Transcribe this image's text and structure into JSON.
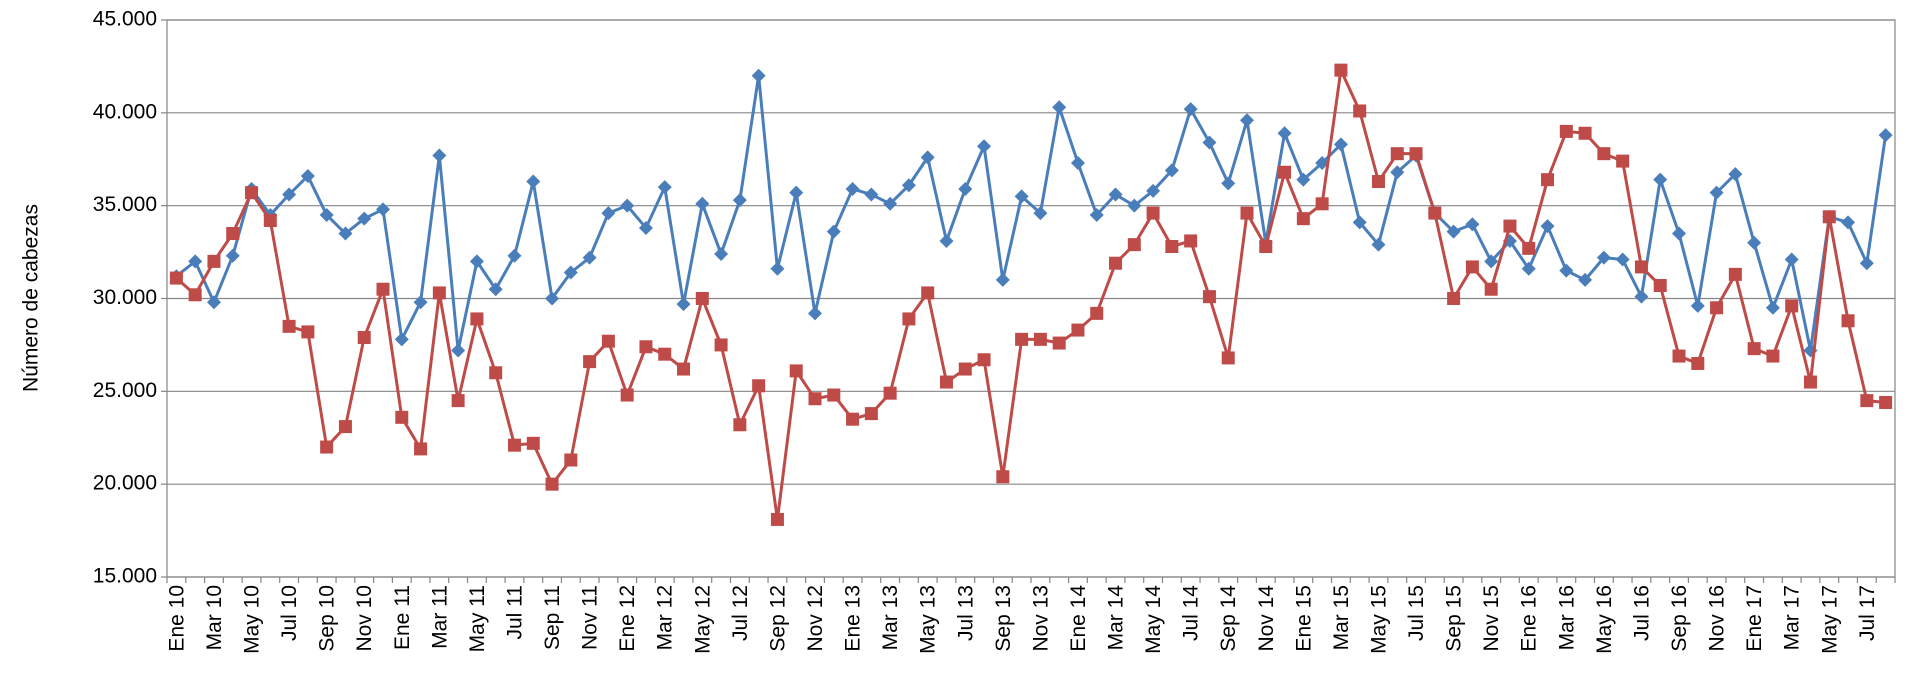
{
  "chart_data": {
    "type": "line",
    "y_label": "Número de cabezas",
    "categories": [
      "Ene 10",
      null,
      "Mar 10",
      null,
      "May 10",
      null,
      "Jul 10",
      null,
      "Sep 10",
      null,
      "Nov 10",
      null,
      "Ene 11",
      null,
      "Mar 11",
      null,
      "May 11",
      null,
      "Jul 11",
      null,
      "Sep 11",
      null,
      "Nov 11",
      null,
      "Ene 12",
      null,
      "Mar 12",
      null,
      "May 12",
      null,
      "Jul 12",
      null,
      "Sep 12",
      null,
      "Nov 12",
      null,
      "Ene 13",
      null,
      "Mar 13",
      null,
      "May 13",
      null,
      "Jul 13",
      null,
      "Sep 13",
      null,
      "Nov 13",
      null,
      "Ene 14",
      null,
      "Mar 14",
      null,
      "May 14",
      null,
      "Jul 14",
      null,
      "Sep 14",
      null,
      "Nov 14",
      null,
      "Ene 15",
      null,
      "Mar 15",
      null,
      "May 15",
      null,
      "Jul 15",
      null,
      "Sep 15",
      null,
      "Nov 15",
      null,
      "Ene 16",
      null,
      "Mar 16",
      null,
      "May 16",
      null,
      "Jul 16",
      null,
      "Sep 16",
      null,
      "Nov 16",
      null,
      "Ene 17",
      null,
      "Mar 17",
      null,
      "May 17",
      null,
      "Jul 17",
      null
    ],
    "series": [
      {
        "color": "#4a7ebb",
        "marker": "diamond",
        "values": [
          31200,
          32000,
          29800,
          32300,
          35900,
          34500,
          35600,
          36600,
          34500,
          33500,
          34300,
          34800,
          27800,
          29800,
          37700,
          27200,
          32000,
          30500,
          32300,
          36300,
          30000,
          31400,
          32200,
          34600,
          35000,
          33800,
          36000,
          29700,
          35100,
          32400,
          35300,
          42000,
          31600,
          35700,
          29200,
          33600,
          35900,
          35600,
          35100,
          36100,
          37600,
          33100,
          35900,
          38200,
          31000,
          35500,
          34600,
          40300,
          37300,
          34500,
          35600,
          35000,
          35800,
          36900,
          40200,
          38400,
          36200,
          39600,
          33000,
          38900,
          36400,
          37300,
          38300,
          34100,
          32900,
          36800,
          37700,
          34600,
          33600,
          34000,
          32000,
          33100,
          31600,
          33900,
          31500,
          31000,
          32200,
          32100,
          30100,
          36400,
          33500,
          29600,
          35700,
          36700,
          33000,
          29500,
          32100,
          27200,
          34400,
          34100,
          31900,
          38800
        ]
      },
      {
        "color": "#be4b48",
        "marker": "square",
        "values": [
          31100,
          30200,
          32000,
          33500,
          35700,
          34200,
          28500,
          28200,
          22000,
          23100,
          27900,
          30500,
          23600,
          21900,
          30300,
          24500,
          28900,
          26000,
          22100,
          22200,
          20000,
          21300,
          26600,
          27700,
          24800,
          27400,
          27000,
          26200,
          30000,
          27500,
          23200,
          25300,
          18100,
          26100,
          24600,
          24800,
          23500,
          23800,
          24900,
          28900,
          30300,
          25500,
          26200,
          26700,
          20400,
          27800,
          27800,
          27600,
          28300,
          29200,
          31900,
          32900,
          34600,
          32800,
          33100,
          30100,
          26800,
          34600,
          32800,
          36800,
          34300,
          35100,
          42300,
          40100,
          36300,
          37800,
          37800,
          34600,
          30000,
          31700,
          30500,
          33900,
          32700,
          36400,
          39000,
          38900,
          37800,
          37400,
          31700,
          30700,
          26900,
          26500,
          29500,
          31300,
          27300,
          26900,
          29600,
          25500,
          34400,
          28800,
          24500,
          24400
        ]
      }
    ],
    "ylim": [
      15000,
      45000
    ],
    "yticks": [
      {
        "value": 15000,
        "label": "15.000"
      },
      {
        "value": 20000,
        "label": "20.000"
      },
      {
        "value": 25000,
        "label": "25.000"
      },
      {
        "value": 30000,
        "label": "30.000"
      },
      {
        "value": 35000,
        "label": "35.000"
      },
      {
        "value": 40000,
        "label": "40.000"
      },
      {
        "value": 45000,
        "label": "45.000"
      }
    ],
    "grid": true
  }
}
